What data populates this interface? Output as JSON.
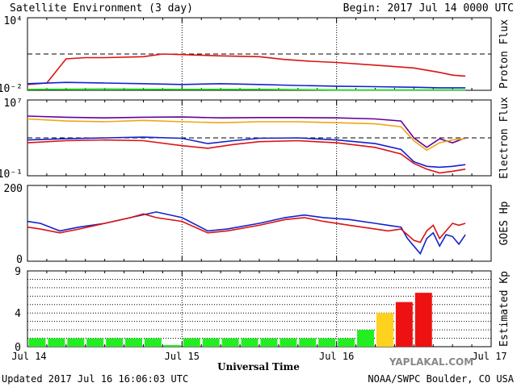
{
  "header": {
    "title": "Satellite Environment (3 day)",
    "begin": "Begin:  2017 Jul 14 0000 UTC"
  },
  "footer": {
    "updated": "Updated 2017 Jul 16 16:06:03 UTC",
    "credit": "NOAA/SWPC Boulder, CO USA",
    "xlabel": "Universal Time",
    "watermark": "YAPLAKAL.COM"
  },
  "colors": {
    "red": "#dd1111",
    "blue": "#1122cc",
    "green": "#22ee22",
    "orange": "#eea611",
    "purple": "#660099",
    "yellow": "#ffd21e",
    "kp_red": "#ee1111"
  },
  "chart_data": [
    {
      "type": "line",
      "panel": "proton",
      "ylabel": "Proton Flux",
      "yscale": "log",
      "ylim": [
        0.01,
        10000
      ],
      "ytick_labels": [
        "10⁴",
        "10⁻²"
      ],
      "reference_line": 10,
      "x_unit": "hours since 2017 Jul 14 0000 UTC",
      "xlim": [
        0,
        72
      ],
      "series": [
        {
          "color": "red",
          "points": [
            [
              0,
              0.03
            ],
            [
              3,
              0.04
            ],
            [
              6,
              4
            ],
            [
              9,
              5
            ],
            [
              12,
              5
            ],
            [
              18,
              6
            ],
            [
              21,
              10
            ],
            [
              24,
              9
            ],
            [
              30,
              7
            ],
            [
              36,
              6
            ],
            [
              40,
              3.5
            ],
            [
              44,
              2.5
            ],
            [
              48,
              2
            ],
            [
              54,
              1.2
            ],
            [
              60,
              0.7
            ],
            [
              64,
              0.3
            ],
            [
              66,
              0.18
            ],
            [
              68,
              0.15
            ]
          ]
        },
        {
          "color": "blue",
          "points": [
            [
              0,
              0.035
            ],
            [
              6,
              0.045
            ],
            [
              12,
              0.04
            ],
            [
              18,
              0.035
            ],
            [
              24,
              0.03
            ],
            [
              30,
              0.035
            ],
            [
              36,
              0.03
            ],
            [
              42,
              0.025
            ],
            [
              48,
              0.022
            ],
            [
              54,
              0.02
            ],
            [
              60,
              0.018
            ],
            [
              64,
              0.016
            ],
            [
              68,
              0.016
            ]
          ]
        },
        {
          "color": "green",
          "points": [
            [
              0,
              0.012
            ],
            [
              12,
              0.013
            ],
            [
              24,
              0.012
            ],
            [
              36,
              0.012
            ],
            [
              48,
              0.011
            ],
            [
              60,
              0.011
            ],
            [
              68,
              0.011
            ]
          ]
        }
      ]
    },
    {
      "type": "line",
      "panel": "electron",
      "ylabel": "Electron Flux",
      "yscale": "log",
      "ylim": [
        0.1,
        10000000
      ],
      "ytick_labels": [
        "10⁷",
        "10⁻¹"
      ],
      "reference_line": 1000,
      "xlim": [
        0,
        72
      ],
      "series": [
        {
          "color": "purple",
          "points": [
            [
              0,
              200000
            ],
            [
              6,
              150000
            ],
            [
              12,
              130000
            ],
            [
              18,
              150000
            ],
            [
              24,
              160000
            ],
            [
              30,
              130000
            ],
            [
              36,
              140000
            ],
            [
              42,
              140000
            ],
            [
              48,
              130000
            ],
            [
              54,
              100000
            ],
            [
              58,
              60000
            ],
            [
              60,
              1000
            ],
            [
              62,
              100
            ],
            [
              64,
              800
            ],
            [
              66,
              300
            ],
            [
              68,
              1000
            ]
          ]
        },
        {
          "color": "orange",
          "points": [
            [
              0,
              100000
            ],
            [
              6,
              60000
            ],
            [
              12,
              50000
            ],
            [
              18,
              70000
            ],
            [
              24,
              50000
            ],
            [
              30,
              40000
            ],
            [
              36,
              50000
            ],
            [
              42,
              50000
            ],
            [
              48,
              40000
            ],
            [
              54,
              30000
            ],
            [
              58,
              15000
            ],
            [
              60,
              500
            ],
            [
              62,
              50
            ],
            [
              64,
              300
            ],
            [
              66,
              600
            ],
            [
              68,
              800
            ]
          ]
        },
        {
          "color": "blue",
          "points": [
            [
              0,
              600
            ],
            [
              6,
              800
            ],
            [
              12,
              1000
            ],
            [
              18,
              1200
            ],
            [
              24,
              900
            ],
            [
              28,
              250
            ],
            [
              32,
              500
            ],
            [
              36,
              900
            ],
            [
              42,
              1000
            ],
            [
              48,
              600
            ],
            [
              54,
              250
            ],
            [
              58,
              60
            ],
            [
              60,
              3
            ],
            [
              62,
              1
            ],
            [
              64,
              0.8
            ],
            [
              66,
              1
            ],
            [
              68,
              1.5
            ]
          ]
        },
        {
          "color": "red",
          "points": [
            [
              0,
              300
            ],
            [
              6,
              500
            ],
            [
              12,
              600
            ],
            [
              18,
              500
            ],
            [
              24,
              150
            ],
            [
              28,
              80
            ],
            [
              32,
              200
            ],
            [
              36,
              400
            ],
            [
              42,
              500
            ],
            [
              48,
              300
            ],
            [
              54,
              100
            ],
            [
              58,
              20
            ],
            [
              60,
              2
            ],
            [
              62,
              0.5
            ],
            [
              64,
              0.2
            ],
            [
              66,
              0.3
            ],
            [
              68,
              0.5
            ]
          ]
        }
      ]
    },
    {
      "type": "line",
      "panel": "goes_hp",
      "ylabel": "GOES Hp",
      "ylim": [
        0,
        200
      ],
      "ytick_labels": [
        "200",
        "0"
      ],
      "xlim": [
        0,
        72
      ],
      "series": [
        {
          "color": "blue",
          "points": [
            [
              0,
              105
            ],
            [
              2,
              100
            ],
            [
              5,
              80
            ],
            [
              8,
              90
            ],
            [
              12,
              100
            ],
            [
              16,
              115
            ],
            [
              20,
              130
            ],
            [
              24,
              115
            ],
            [
              28,
              80
            ],
            [
              31,
              85
            ],
            [
              36,
              100
            ],
            [
              40,
              115
            ],
            [
              43,
              122
            ],
            [
              46,
              115
            ],
            [
              50,
              110
            ],
            [
              54,
              100
            ],
            [
              56,
              95
            ],
            [
              58,
              90
            ],
            [
              59,
              60
            ],
            [
              60,
              40
            ],
            [
              61,
              20
            ],
            [
              62,
              60
            ],
            [
              63,
              75
            ],
            [
              64,
              40
            ],
            [
              65,
              70
            ],
            [
              66,
              65
            ],
            [
              67,
              45
            ],
            [
              68,
              70
            ]
          ]
        },
        {
          "color": "red",
          "points": [
            [
              0,
              90
            ],
            [
              2,
              85
            ],
            [
              5,
              75
            ],
            [
              8,
              85
            ],
            [
              12,
              100
            ],
            [
              16,
              115
            ],
            [
              18,
              125
            ],
            [
              20,
              115
            ],
            [
              24,
              105
            ],
            [
              28,
              75
            ],
            [
              31,
              80
            ],
            [
              36,
              95
            ],
            [
              40,
              110
            ],
            [
              43,
              115
            ],
            [
              46,
              105
            ],
            [
              50,
              95
            ],
            [
              54,
              85
            ],
            [
              56,
              80
            ],
            [
              58,
              85
            ],
            [
              59,
              70
            ],
            [
              60,
              55
            ],
            [
              61,
              50
            ],
            [
              62,
              80
            ],
            [
              63,
              95
            ],
            [
              64,
              60
            ],
            [
              65,
              80
            ],
            [
              66,
              100
            ],
            [
              67,
              95
            ],
            [
              68,
              100
            ]
          ]
        }
      ]
    },
    {
      "type": "bar",
      "panel": "kp",
      "ylabel": "Estimated Kp",
      "ylim": [
        0,
        9
      ],
      "ytick_labels": [
        "9",
        "4",
        "0"
      ],
      "bar_hours": 3,
      "values": [
        1,
        1,
        1,
        1,
        1,
        1,
        1,
        0.2,
        1,
        1,
        1,
        1,
        1,
        1,
        1,
        1,
        1,
        2,
        4,
        5.3,
        6.4
      ],
      "bar_colors": [
        "green",
        "green",
        "green",
        "green",
        "green",
        "green",
        "green",
        "green",
        "green",
        "green",
        "green",
        "green",
        "green",
        "green",
        "green",
        "green",
        "green",
        "green",
        "yellow",
        "kp_red",
        "kp_red"
      ]
    }
  ],
  "x_axis": {
    "ticks": [
      {
        "hour": 0,
        "label": "Jul 14"
      },
      {
        "hour": 24,
        "label": "Jul 15"
      },
      {
        "hour": 48,
        "label": "Jul 16"
      },
      {
        "hour": 72,
        "label": "Jul 17"
      }
    ]
  }
}
